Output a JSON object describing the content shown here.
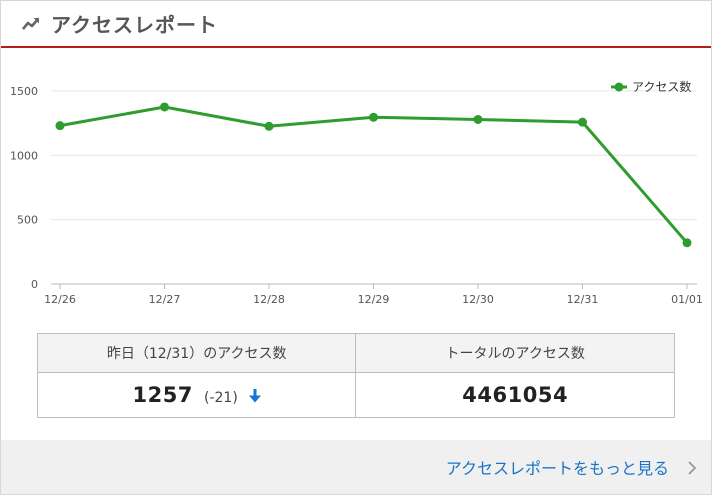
{
  "header": {
    "title": "アクセスレポート",
    "icon": "trending-up-icon"
  },
  "colors": {
    "accent_red": "#b71c1c",
    "series_green": "#2e9c2e",
    "link_blue": "#1a73c8",
    "arrow_blue": "#1976d2"
  },
  "chart_data": {
    "type": "line",
    "categories": [
      "12/26",
      "12/27",
      "12/28",
      "12/29",
      "12/30",
      "12/31",
      "01/01"
    ],
    "series": [
      {
        "name": "アクセス数",
        "values": [
          1230,
          1375,
          1225,
          1295,
          1278,
          1257,
          320
        ]
      }
    ],
    "yticks": [
      0,
      500,
      1000,
      1500
    ],
    "ylim": [
      0,
      1600
    ],
    "grid": true,
    "legend_position": "top-right"
  },
  "stats": {
    "yesterday_header": "昨日（12/31）のアクセス数",
    "yesterday_value": "1257",
    "yesterday_diff": "(-21)",
    "total_header": "トータルのアクセス数",
    "total_value": "4461054",
    "trend_icon": "arrow-down-icon"
  },
  "footer": {
    "more_link": "アクセスレポートをもっと見る",
    "icon": "chevron-right-icon"
  }
}
